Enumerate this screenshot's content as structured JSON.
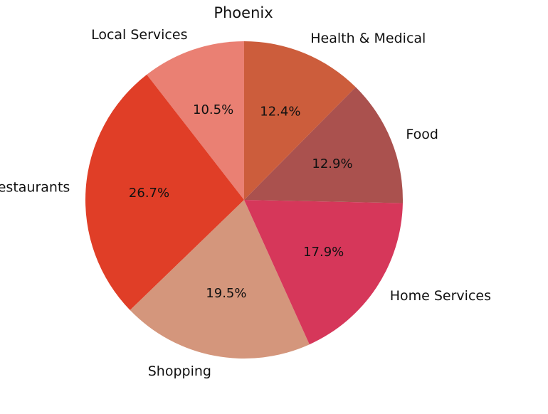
{
  "chart_data": {
    "type": "pie",
    "title": "Phoenix",
    "categories": [
      "Local Services",
      "Restaurants",
      "Shopping",
      "Home Services",
      "Food",
      "Health & Medical"
    ],
    "values": [
      10.5,
      26.7,
      19.5,
      17.9,
      12.9,
      12.4
    ],
    "value_labels": [
      "10.5%",
      "26.7%",
      "19.5%",
      "17.9%",
      "12.9%",
      "12.4%"
    ],
    "colors": [
      "#EA8073",
      "#E03E27",
      "#D4967C",
      "#D6375A",
      "#AA514E",
      "#CC5D3C"
    ],
    "start_angle": 90,
    "direction": "counterclockwise"
  }
}
